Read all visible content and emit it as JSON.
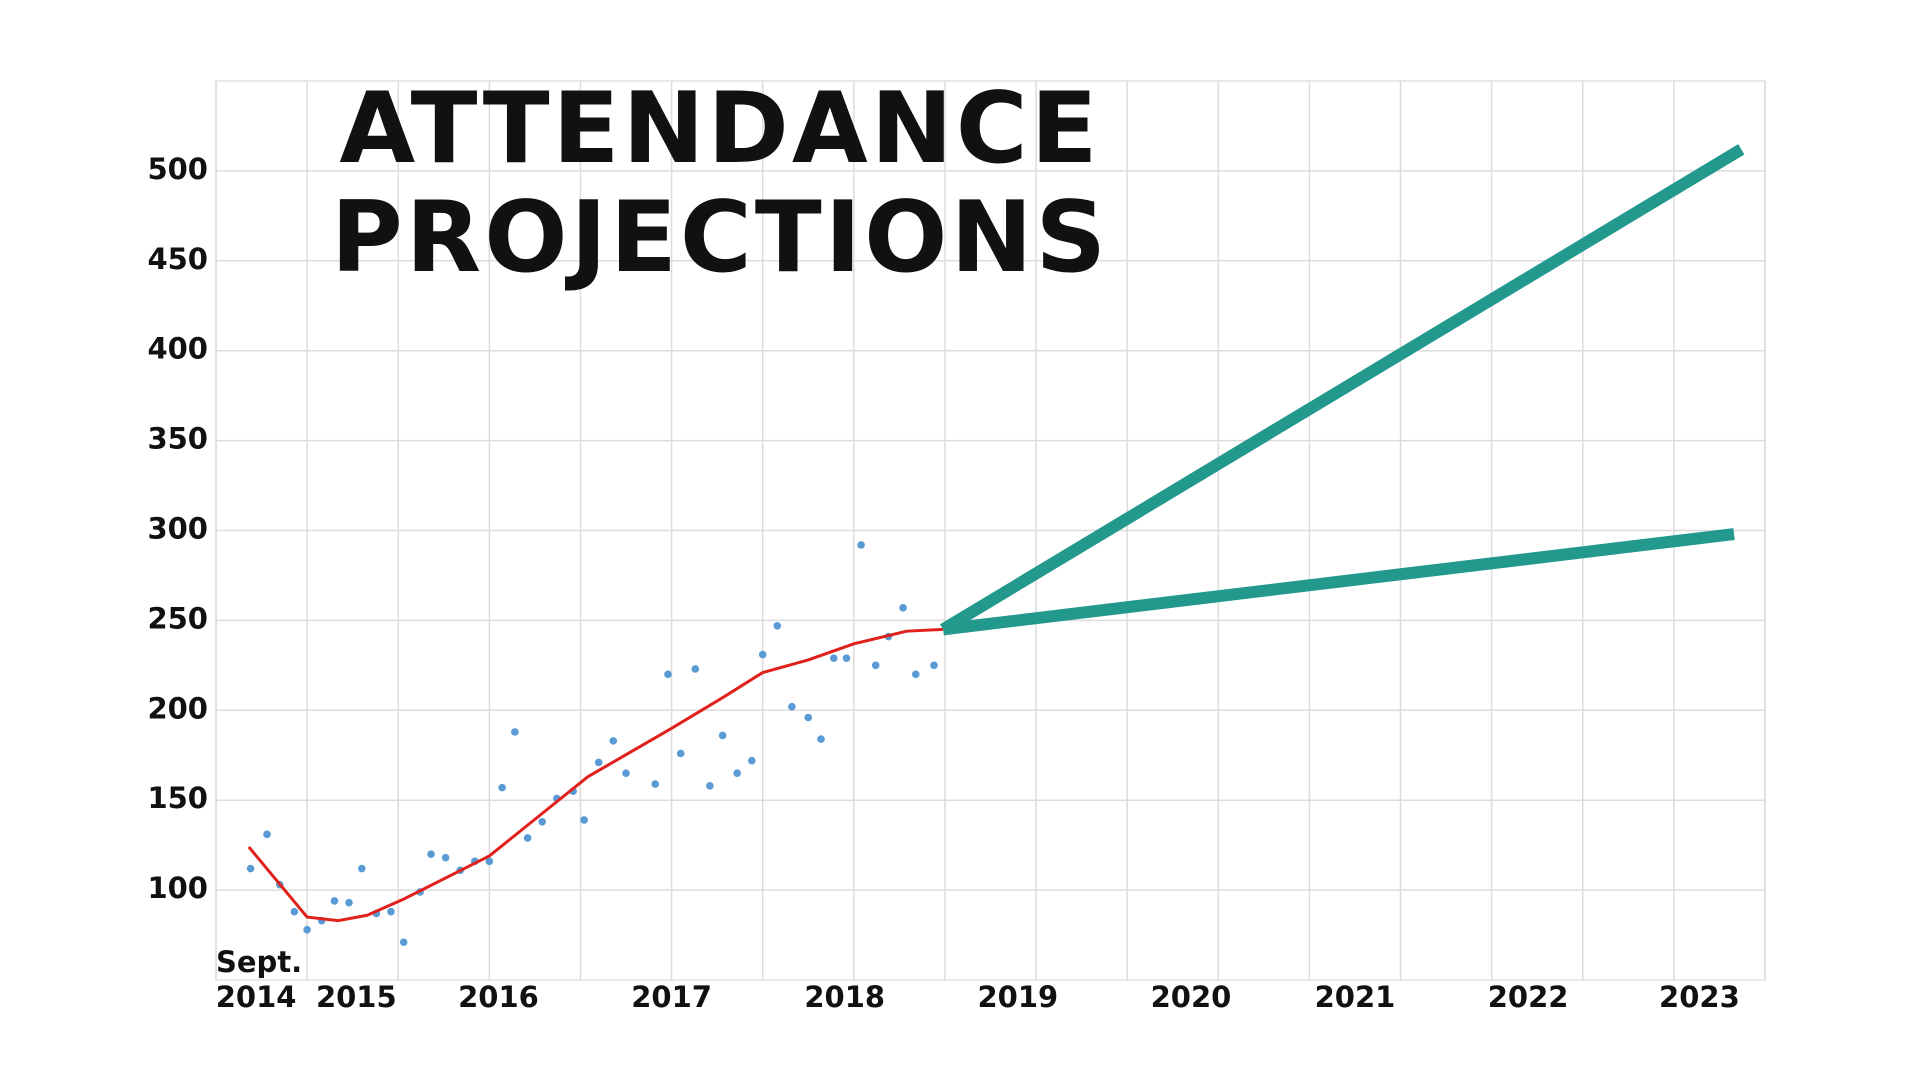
{
  "chart_data": {
    "type": "scatter",
    "title": [
      "ATTENDANCE",
      "PROJECTIONS"
    ],
    "annotations": [
      "Sept."
    ],
    "xlim": [
      2014.5,
      2023.0
    ],
    "ylim": [
      50,
      550
    ],
    "xticks": [
      {
        "value": 2014.72,
        "label": "2014"
      },
      {
        "value": 2015.27,
        "label": "2015"
      },
      {
        "value": 2016.05,
        "label": "2016"
      },
      {
        "value": 2017.0,
        "label": "2017"
      },
      {
        "value": 2017.95,
        "label": "2018"
      },
      {
        "value": 2018.9,
        "label": "2019"
      },
      {
        "value": 2019.85,
        "label": "2020"
      },
      {
        "value": 2020.75,
        "label": "2021"
      },
      {
        "value": 2021.7,
        "label": "2022"
      },
      {
        "value": 2022.64,
        "label": "2023"
      }
    ],
    "xgrid": [
      2014.5,
      2015.0,
      2015.5,
      2016.0,
      2016.5,
      2017.0,
      2017.5,
      2018.0,
      2018.5,
      2019.0,
      2019.5,
      2020.0,
      2020.5,
      2021.0,
      2021.5,
      2022.0,
      2022.5,
      2023.0
    ],
    "yticks": [
      100,
      150,
      200,
      250,
      300,
      350,
      400,
      450,
      500
    ],
    "grid": true,
    "series": [
      {
        "type": "scatter",
        "color": "#5b9bd5",
        "x": [
          2014.69,
          2014.78,
          2014.85,
          2014.93,
          2015.0,
          2015.08,
          2015.15,
          2015.23,
          2015.3,
          2015.38,
          2015.46,
          2015.53,
          2015.62,
          2015.68,
          2015.76,
          2015.84,
          2015.92,
          2016.0,
          2016.07,
          2016.14,
          2016.21,
          2016.29,
          2016.37,
          2016.46,
          2016.52,
          2016.6,
          2016.68,
          2016.75,
          2016.91,
          2016.98,
          2017.05,
          2017.13,
          2017.21,
          2017.28,
          2017.36,
          2017.44,
          2017.5,
          2017.58,
          2017.66,
          2017.75,
          2017.82,
          2017.89,
          2017.96,
          2018.04,
          2018.12,
          2018.19,
          2018.27,
          2018.34,
          2018.44
        ],
        "values": [
          112,
          131,
          103,
          88,
          78,
          83,
          94,
          93,
          112,
          87,
          88,
          71,
          99,
          120,
          118,
          111,
          116,
          116,
          157,
          188,
          129,
          138,
          151,
          155,
          139,
          171,
          183,
          165,
          159,
          220,
          176,
          223,
          158,
          186,
          165,
          172,
          231,
          247,
          202,
          196,
          184,
          229,
          229,
          292,
          225,
          241,
          257,
          220,
          225
        ]
      },
      {
        "type": "line",
        "color": "#e0201b",
        "x": [
          2014.68,
          2015.0,
          2015.17,
          2015.33,
          2015.53,
          2016.0,
          2016.27,
          2016.54,
          2017.0,
          2017.28,
          2017.5,
          2017.75,
          2018.0,
          2018.29,
          2018.49
        ],
        "values": [
          124,
          85,
          83,
          86,
          95,
          119,
          141,
          163,
          190,
          207,
          221,
          228,
          237,
          244,
          245
        ]
      },
      {
        "type": "line",
        "color": "#23998e",
        "x": [
          2018.49,
          2022.87
        ],
        "values": [
          245,
          512
        ]
      },
      {
        "type": "line",
        "color": "#23998e",
        "x": [
          2018.49,
          2022.83
        ],
        "values": [
          245,
          298
        ]
      }
    ]
  }
}
